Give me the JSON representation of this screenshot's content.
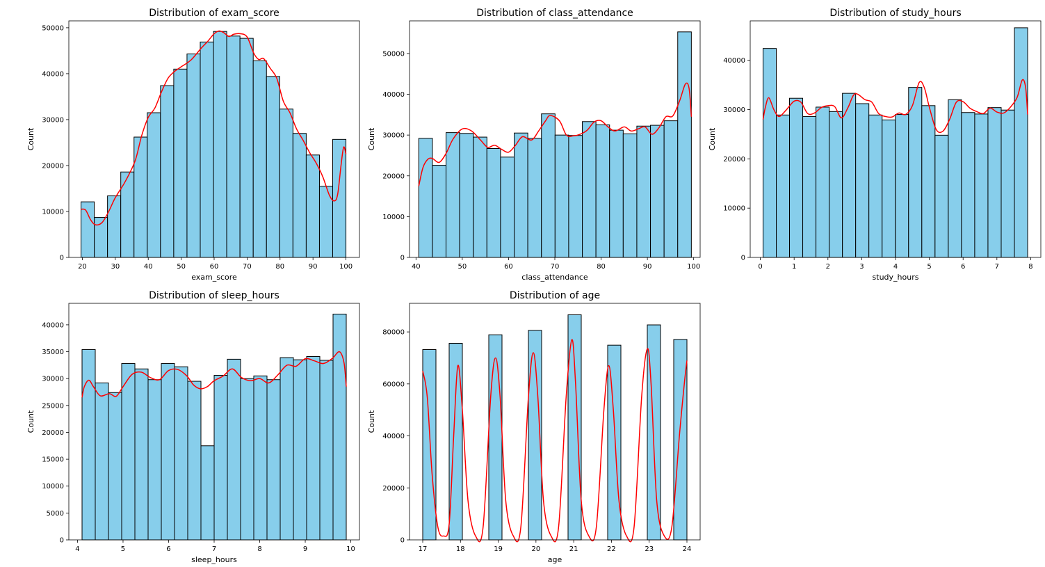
{
  "figure": {
    "hist_color": "#87ceeb",
    "edge_color": "#000000",
    "kde_color": "#ff0000"
  },
  "chart_data": [
    {
      "type": "bar",
      "title": "Distribution of exam_score",
      "xlabel": "exam_score",
      "ylabel": "Count",
      "xlim": [
        15.9,
        104.1
      ],
      "ylim": [
        0,
        51500
      ],
      "xticks": [
        20,
        30,
        40,
        50,
        60,
        70,
        80,
        90,
        100
      ],
      "yticks": [
        0,
        10000,
        20000,
        30000,
        40000,
        50000
      ],
      "bin_range": [
        19.6,
        100
      ],
      "values": [
        12100,
        8700,
        13400,
        18600,
        26200,
        31500,
        37400,
        41000,
        44300,
        46900,
        49200,
        48200,
        47700,
        42800,
        39400,
        32300,
        27000,
        22300,
        15500,
        25700
      ],
      "kde": [
        [
          19.6,
          10500
        ],
        [
          21,
          10300
        ],
        [
          22.5,
          8200
        ],
        [
          24,
          7100
        ],
        [
          26,
          7600
        ],
        [
          28,
          10000
        ],
        [
          30,
          13000
        ],
        [
          33,
          16500
        ],
        [
          36,
          21000
        ],
        [
          38,
          26500
        ],
        [
          40,
          30500
        ],
        [
          42,
          32500
        ],
        [
          44,
          36000
        ],
        [
          46,
          39000
        ],
        [
          48,
          40500
        ],
        [
          50,
          41500
        ],
        [
          53,
          43000
        ],
        [
          56,
          45500
        ],
        [
          58,
          47000
        ],
        [
          60,
          48700
        ],
        [
          61.5,
          49300
        ],
        [
          63,
          48900
        ],
        [
          64.5,
          48100
        ],
        [
          66,
          48600
        ],
        [
          68,
          48700
        ],
        [
          70,
          48000
        ],
        [
          72,
          44500
        ],
        [
          73.5,
          43100
        ],
        [
          75,
          43300
        ],
        [
          77,
          41200
        ],
        [
          79,
          39000
        ],
        [
          81,
          34000
        ],
        [
          83,
          31500
        ],
        [
          85,
          28000
        ],
        [
          87,
          25500
        ],
        [
          89,
          22800
        ],
        [
          91,
          20500
        ],
        [
          93,
          17500
        ],
        [
          95,
          13500
        ],
        [
          96.5,
          12300
        ],
        [
          97.5,
          13800
        ],
        [
          98.5,
          20000
        ],
        [
          99.3,
          24000
        ],
        [
          100,
          22500
        ]
      ]
    },
    {
      "type": "bar",
      "title": "Distribution of class_attendance",
      "xlabel": "class_attendance",
      "ylabel": "Count",
      "xlim": [
        38.6,
        101.4
      ],
      "ylim": [
        0,
        58000
      ],
      "xticks": [
        40,
        50,
        60,
        70,
        80,
        90,
        100
      ],
      "yticks": [
        0,
        10000,
        20000,
        30000,
        40000,
        50000
      ],
      "bin_range": [
        40.6,
        99.5
      ],
      "values": [
        29200,
        22600,
        30600,
        30400,
        29500,
        26700,
        24600,
        30500,
        29200,
        35200,
        30000,
        29900,
        33300,
        32500,
        31200,
        30300,
        32200,
        32400,
        33500,
        55300
      ],
      "kde": [
        [
          40.6,
          17500
        ],
        [
          41.5,
          22000
        ],
        [
          42.5,
          24000
        ],
        [
          43.5,
          24300
        ],
        [
          45,
          23300
        ],
        [
          46.5,
          25500
        ],
        [
          48,
          29000
        ],
        [
          50,
          31500
        ],
        [
          52,
          31000
        ],
        [
          54,
          28700
        ],
        [
          55.5,
          27000
        ],
        [
          57,
          27500
        ],
        [
          58.5,
          26500
        ],
        [
          60,
          25800
        ],
        [
          61.5,
          27500
        ],
        [
          63,
          29600
        ],
        [
          65,
          28800
        ],
        [
          66.5,
          31000
        ],
        [
          68,
          33500
        ],
        [
          69,
          34800
        ],
        [
          71,
          33500
        ],
        [
          72.5,
          30000
        ],
        [
          74,
          29800
        ],
        [
          75.5,
          30200
        ],
        [
          77,
          31200
        ],
        [
          78.5,
          33200
        ],
        [
          80,
          33500
        ],
        [
          81.5,
          32000
        ],
        [
          83,
          31000
        ],
        [
          85,
          32000
        ],
        [
          86.5,
          31000
        ],
        [
          88,
          31500
        ],
        [
          89.5,
          32000
        ],
        [
          91,
          30200
        ],
        [
          92.5,
          31800
        ],
        [
          94,
          34500
        ],
        [
          95.5,
          34700
        ],
        [
          97,
          38500
        ],
        [
          98.2,
          42500
        ],
        [
          99,
          41500
        ],
        [
          99.5,
          34500
        ]
      ]
    },
    {
      "type": "bar",
      "title": "Distribution of study_hours",
      "xlabel": "study_hours",
      "ylabel": "Count",
      "xlim": [
        -0.3,
        8.3
      ],
      "ylim": [
        0,
        48000
      ],
      "xticks": [
        0,
        1,
        2,
        3,
        4,
        5,
        6,
        7,
        8
      ],
      "yticks": [
        0,
        10000,
        20000,
        30000,
        40000
      ],
      "bin_range": [
        0.08,
        7.91
      ],
      "values": [
        42400,
        28900,
        32300,
        28600,
        30500,
        29600,
        33300,
        31200,
        28900,
        27900,
        29000,
        34500,
        30800,
        24800,
        32000,
        29400,
        29100,
        30400,
        29900,
        46600
      ],
      "kde": [
        [
          0.08,
          28000
        ],
        [
          0.15,
          30500
        ],
        [
          0.25,
          32400
        ],
        [
          0.4,
          30000
        ],
        [
          0.55,
          28600
        ],
        [
          0.75,
          29800
        ],
        [
          1,
          31700
        ],
        [
          1.2,
          31500
        ],
        [
          1.4,
          29200
        ],
        [
          1.6,
          29300
        ],
        [
          1.8,
          30400
        ],
        [
          2,
          30800
        ],
        [
          2.2,
          30600
        ],
        [
          2.4,
          28300
        ],
        [
          2.6,
          30500
        ],
        [
          2.8,
          33200
        ],
        [
          3.1,
          32000
        ],
        [
          3.3,
          31500
        ],
        [
          3.5,
          29200
        ],
        [
          3.7,
          28600
        ],
        [
          3.9,
          28500
        ],
        [
          4.1,
          29300
        ],
        [
          4.3,
          29000
        ],
        [
          4.5,
          30800
        ],
        [
          4.7,
          35500
        ],
        [
          4.85,
          34500
        ],
        [
          5,
          30500
        ],
        [
          5.2,
          26000
        ],
        [
          5.4,
          25600
        ],
        [
          5.6,
          28000
        ],
        [
          5.8,
          31500
        ],
        [
          6,
          31600
        ],
        [
          6.2,
          30300
        ],
        [
          6.4,
          29600
        ],
        [
          6.6,
          29200
        ],
        [
          6.8,
          30300
        ],
        [
          7,
          29500
        ],
        [
          7.2,
          29300
        ],
        [
          7.4,
          30500
        ],
        [
          7.6,
          32500
        ],
        [
          7.75,
          36000
        ],
        [
          7.85,
          34500
        ],
        [
          7.91,
          29000
        ]
      ]
    },
    {
      "type": "bar",
      "title": "Distribution of sleep_hours",
      "xlabel": "sleep_hours",
      "ylabel": "Count",
      "xlim": [
        3.81,
        10.19
      ],
      "ylim": [
        0,
        44000
      ],
      "xticks": [
        4,
        5,
        6,
        7,
        8,
        9,
        10
      ],
      "yticks": [
        0,
        5000,
        10000,
        15000,
        20000,
        25000,
        30000,
        35000,
        40000
      ],
      "bin_range": [
        4.1,
        9.9
      ],
      "values": [
        35400,
        29200,
        27400,
        32800,
        31800,
        29800,
        32800,
        32200,
        29500,
        17500,
        30600,
        33600,
        30000,
        30500,
        29800,
        33900,
        33500,
        34100,
        33400,
        42000
      ],
      "kde": [
        [
          4.1,
          26500
        ],
        [
          4.15,
          28500
        ],
        [
          4.25,
          29700
        ],
        [
          4.35,
          28500
        ],
        [
          4.5,
          26800
        ],
        [
          4.7,
          27200
        ],
        [
          4.85,
          26700
        ],
        [
          5,
          28500
        ],
        [
          5.2,
          30800
        ],
        [
          5.4,
          31200
        ],
        [
          5.6,
          30200
        ],
        [
          5.8,
          29800
        ],
        [
          6,
          31500
        ],
        [
          6.2,
          31700
        ],
        [
          6.4,
          30500
        ],
        [
          6.55,
          28800
        ],
        [
          6.7,
          28100
        ],
        [
          6.85,
          28500
        ],
        [
          7,
          29600
        ],
        [
          7.2,
          30500
        ],
        [
          7.4,
          31800
        ],
        [
          7.6,
          30200
        ],
        [
          7.8,
          29600
        ],
        [
          8,
          30000
        ],
        [
          8.2,
          29200
        ],
        [
          8.4,
          30700
        ],
        [
          8.6,
          32500
        ],
        [
          8.8,
          32300
        ],
        [
          9,
          33700
        ],
        [
          9.2,
          33300
        ],
        [
          9.4,
          32800
        ],
        [
          9.6,
          33800
        ],
        [
          9.75,
          35000
        ],
        [
          9.85,
          33000
        ],
        [
          9.9,
          28500
        ]
      ]
    },
    {
      "type": "bar",
      "title": "Distribution of age",
      "xlabel": "age",
      "ylabel": "Count",
      "xlim": [
        16.65,
        24.35
      ],
      "ylim": [
        0,
        91000
      ],
      "xticks": [
        17,
        18,
        19,
        20,
        21,
        22,
        23,
        24
      ],
      "yticks": [
        0,
        20000,
        40000,
        60000,
        80000
      ],
      "bin_range": [
        17,
        24
      ],
      "values": [
        73200,
        0,
        75600,
        0,
        0,
        78900,
        0,
        0,
        80600,
        0,
        0,
        86600,
        0,
        0,
        74900,
        0,
        0,
        82700,
        0,
        77100
      ],
      "kde": [
        [
          17,
          65000
        ],
        [
          17.12,
          55000
        ],
        [
          17.25,
          25000
        ],
        [
          17.4,
          5000
        ],
        [
          17.55,
          1500
        ],
        [
          17.7,
          6000
        ],
        [
          17.82,
          40000
        ],
        [
          17.93,
          67000
        ],
        [
          18.05,
          50000
        ],
        [
          18.2,
          15000
        ],
        [
          18.4,
          1500
        ],
        [
          18.6,
          5000
        ],
        [
          18.8,
          55000
        ],
        [
          18.93,
          70000
        ],
        [
          19.05,
          55000
        ],
        [
          19.2,
          15000
        ],
        [
          19.4,
          1500
        ],
        [
          19.6,
          5000
        ],
        [
          19.8,
          55000
        ],
        [
          19.93,
          72000
        ],
        [
          20.05,
          55000
        ],
        [
          20.2,
          15000
        ],
        [
          20.4,
          1500
        ],
        [
          20.6,
          5000
        ],
        [
          20.8,
          55000
        ],
        [
          20.95,
          77000
        ],
        [
          21.05,
          60000
        ],
        [
          21.2,
          15000
        ],
        [
          21.4,
          1500
        ],
        [
          21.6,
          5000
        ],
        [
          21.8,
          50000
        ],
        [
          21.93,
          67000
        ],
        [
          22.05,
          50000
        ],
        [
          22.2,
          15000
        ],
        [
          22.4,
          1500
        ],
        [
          22.6,
          5000
        ],
        [
          22.8,
          55000
        ],
        [
          22.95,
          73500
        ],
        [
          23.05,
          60000
        ],
        [
          23.2,
          15000
        ],
        [
          23.4,
          1500
        ],
        [
          23.6,
          5000
        ],
        [
          23.8,
          40000
        ],
        [
          23.93,
          60000
        ],
        [
          24,
          69000
        ]
      ]
    }
  ]
}
